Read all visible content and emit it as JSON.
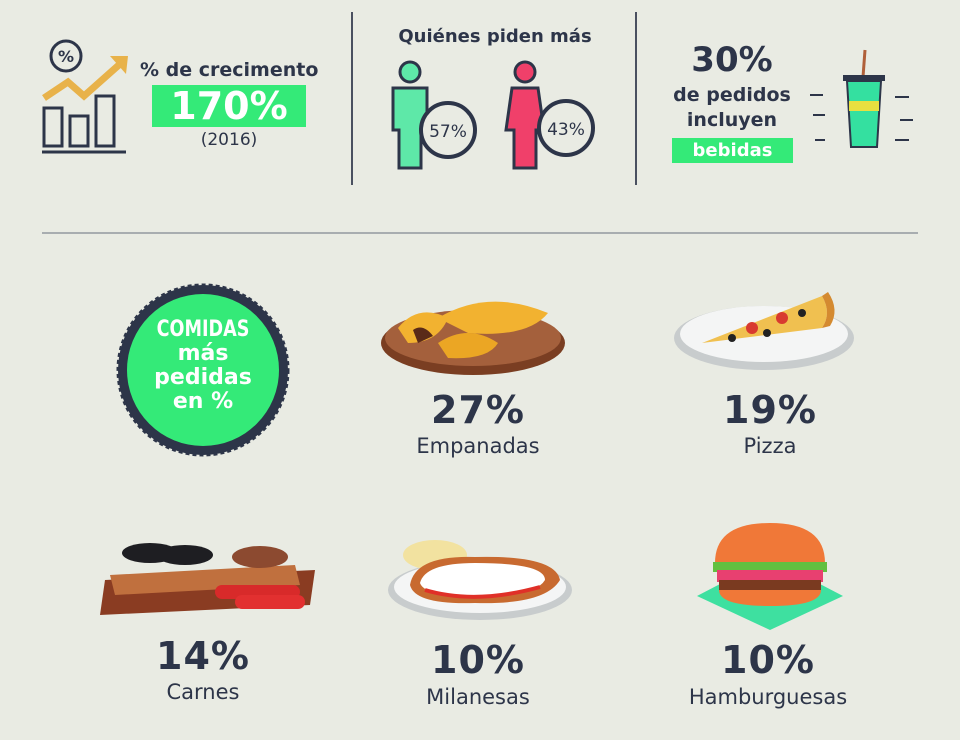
{
  "growth": {
    "label": "% de crecimento",
    "value": "170%",
    "year": "(2016)"
  },
  "who_orders": {
    "title": "Quiénes piden más",
    "men": "57%",
    "women": "43%"
  },
  "drinks": {
    "value": "30%",
    "line1": "de pedidos",
    "line2": "incluyen",
    "highlight": "bebidas"
  },
  "badge": {
    "line1": "COMIDAS",
    "line2": "más",
    "line3": "pedidas",
    "line4": "en %"
  },
  "foods": [
    {
      "pct": "27%",
      "name": "Empanadas"
    },
    {
      "pct": "19%",
      "name": "Pizza"
    },
    {
      "pct": "14%",
      "name": "Carnes"
    },
    {
      "pct": "10%",
      "name": "Milanesas"
    },
    {
      "pct": "10%",
      "name": "Hamburguesas"
    }
  ],
  "colors": {
    "navy": "#2d3549",
    "green": "#34ea78",
    "mint": "#5ee8a8",
    "pink": "#f0406a",
    "background": "#e9ebe3"
  }
}
